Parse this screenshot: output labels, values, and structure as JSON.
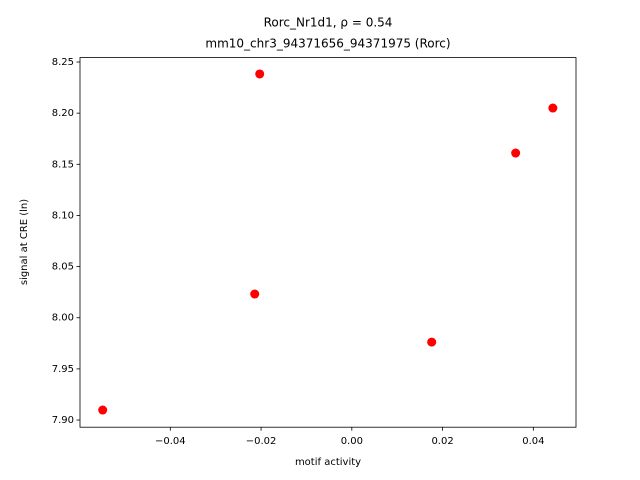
{
  "chart_data": {
    "type": "scatter",
    "title": [
      "Rorc_Nr1d1, ρ = 0.54",
      "mm10_chr3_94371656_94371975 (Rorc)"
    ],
    "x_label": "motif activity",
    "y_label": "signal at CRE (ln)",
    "x": [
      -0.0549,
      -0.0203,
      -0.0214,
      0.0176,
      0.0361,
      0.0443
    ],
    "values": [
      7.9098,
      8.2383,
      8.0232,
      7.9762,
      8.161,
      8.205
    ],
    "color": "#ff0000",
    "xlim": [
      -0.0599,
      0.0494
    ],
    "ylim": [
      7.893,
      8.2543
    ],
    "xticks": [
      {
        "value": -0.04,
        "label": "−0.04"
      },
      {
        "value": -0.02,
        "label": "−0.02"
      },
      {
        "value": 0,
        "label": "0.00"
      },
      0.02,
      0.04
    ],
    "yticks": [
      {
        "value": 7.9,
        "label": "7.90"
      },
      7.95,
      {
        "value": 8,
        "label": "8.00"
      },
      8.05,
      {
        "value": 8.1,
        "label": "8.10"
      },
      8.15,
      {
        "value": 8.2,
        "label": "8.20"
      },
      8.25
    ]
  }
}
